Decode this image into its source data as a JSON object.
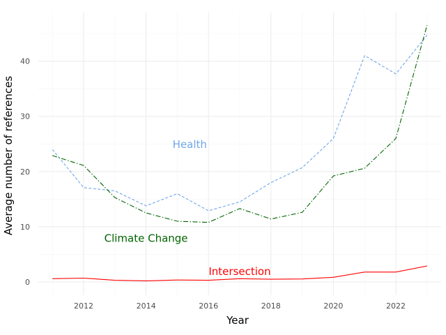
{
  "chart_data": {
    "type": "line",
    "title": "",
    "xlabel": "Year",
    "ylabel": "Average number of references",
    "xlim": [
      2010.55,
      2023.45
    ],
    "ylim": [
      -2.4,
      48.8
    ],
    "x_major_ticks": [
      2012,
      2014,
      2016,
      2018,
      2020,
      2022
    ],
    "x_minor_ticks": [
      2011,
      2013,
      2015,
      2017,
      2019,
      2021,
      2023
    ],
    "y_major_ticks": [
      0,
      10,
      20,
      30,
      40
    ],
    "y_minor_ticks": [
      5,
      15,
      25,
      35,
      45
    ],
    "x_tick_labels": [
      "2012",
      "2014",
      "2016",
      "2018",
      "2020",
      "2022"
    ],
    "y_tick_labels": [
      "0",
      "10",
      "20",
      "30",
      "40"
    ],
    "grid": true,
    "legend": "none (direct labels)",
    "x": [
      2011,
      2012,
      2013,
      2014,
      2015,
      2016,
      2017,
      2018,
      2019,
      2020,
      2021,
      2022,
      2023
    ],
    "series": [
      {
        "name": "Health",
        "color": "#6fa6e8",
        "dash": "dashed",
        "values": [
          24.0,
          17.1,
          16.5,
          13.8,
          16.0,
          12.9,
          14.5,
          18.0,
          20.7,
          26.0,
          41.0,
          37.7,
          44.7
        ]
      },
      {
        "name": "Climate Change",
        "color": "#006400",
        "dash": "dashdot",
        "values": [
          22.9,
          21.1,
          15.3,
          12.5,
          11.0,
          10.8,
          13.3,
          11.4,
          12.6,
          19.2,
          20.6,
          26.0,
          46.5
        ]
      },
      {
        "name": "Intersection",
        "color": "#ff0000",
        "dash": "solid",
        "values": [
          0.6,
          0.7,
          0.3,
          0.2,
          0.35,
          0.3,
          0.6,
          0.5,
          0.55,
          0.85,
          1.8,
          1.8,
          2.9
        ]
      }
    ],
    "annotations": [
      {
        "text": "Health",
        "color": "#6fa6e8",
        "x": 2015.4,
        "y": 24.9
      },
      {
        "text": "Climate Change",
        "color": "#006400",
        "x": 2014.0,
        "y": 7.9
      },
      {
        "text": "Intersection",
        "color": "#ff0000",
        "x": 2017.0,
        "y": 1.9
      }
    ]
  }
}
